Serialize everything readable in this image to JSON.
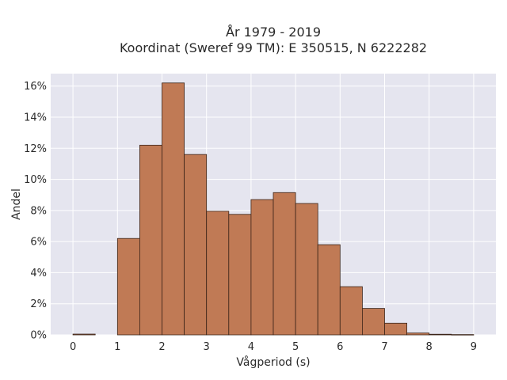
{
  "chart_data": {
    "type": "bar",
    "title_line1": "År 1979 - 2019",
    "title_line2": "Koordinat (Sweref 99 TM): E 350515, N 6222282",
    "xlabel": "Vågperiod (s)",
    "ylabel": "Andel",
    "xlim": [
      -0.5,
      9.5
    ],
    "ylim": [
      0,
      16.8
    ],
    "x_ticks": [
      0,
      1,
      2,
      3,
      4,
      5,
      6,
      7,
      8,
      9
    ],
    "y_ticks": [
      0,
      2,
      4,
      6,
      8,
      10,
      12,
      14,
      16
    ],
    "y_tick_suffix": "%",
    "bin_width": 0.5,
    "bins": [
      {
        "start": 0.0,
        "value": 0.05
      },
      {
        "start": 0.5,
        "value": 0.0
      },
      {
        "start": 1.0,
        "value": 6.2
      },
      {
        "start": 1.5,
        "value": 12.2
      },
      {
        "start": 2.0,
        "value": 16.2
      },
      {
        "start": 2.5,
        "value": 11.6
      },
      {
        "start": 3.0,
        "value": 7.95
      },
      {
        "start": 3.5,
        "value": 7.75
      },
      {
        "start": 4.0,
        "value": 8.7
      },
      {
        "start": 4.5,
        "value": 9.15
      },
      {
        "start": 5.0,
        "value": 8.45
      },
      {
        "start": 5.5,
        "value": 5.8
      },
      {
        "start": 6.0,
        "value": 3.1
      },
      {
        "start": 6.5,
        "value": 1.7
      },
      {
        "start": 7.0,
        "value": 0.75
      },
      {
        "start": 7.5,
        "value": 0.12
      },
      {
        "start": 8.0,
        "value": 0.04
      },
      {
        "start": 8.5,
        "value": 0.02
      }
    ],
    "bar_color": "#c07a55",
    "bar_edge_color": "#3b2418",
    "background_color": "#e5e5ef",
    "grid": true,
    "legend": "none"
  }
}
